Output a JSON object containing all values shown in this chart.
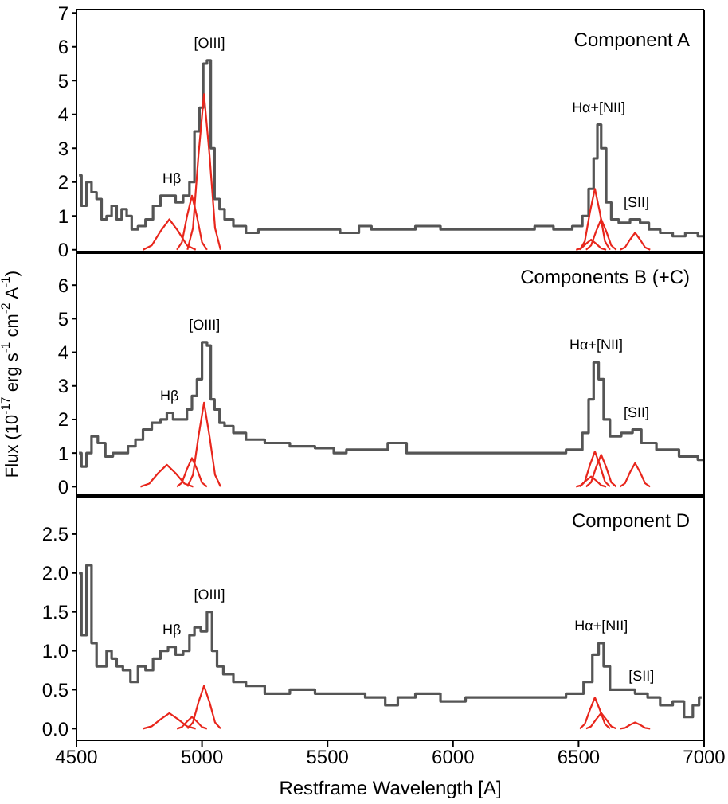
{
  "chart_data": [
    {
      "type": "line",
      "title": "Component A",
      "xlim": [
        4500,
        7000
      ],
      "xticks": [
        4500,
        5000,
        5500,
        6000,
        6500,
        7000
      ],
      "ylim": [
        -0.1,
        7.1
      ],
      "yticks": [
        0,
        1,
        2,
        3,
        4,
        5,
        6,
        7
      ],
      "tick_labels": "y",
      "marker": "none",
      "line_style": "solid",
      "annotations": [
        {
          "text": "Hβ",
          "x": 4880,
          "y": 1.6
        },
        {
          "text": "[OIII]",
          "x": 5030,
          "y": 5.6
        },
        {
          "text": "Hα+[NII]",
          "x": 6580,
          "y": 3.7
        },
        {
          "text": "[SII]",
          "x": 6730,
          "y": 0.9
        }
      ],
      "series": [
        {
          "type": "step",
          "color": "#555555",
          "x": [
            4510,
            4530,
            4550,
            4570,
            4590,
            4610,
            4630,
            4650,
            4670,
            4690,
            4710,
            4730,
            4760,
            4790,
            4820,
            4850,
            4880,
            4910,
            4940,
            4960,
            4980,
            5000,
            5010,
            5030,
            5040,
            5060,
            5080,
            5100,
            5150,
            5200,
            5250,
            5300,
            5400,
            5500,
            5600,
            5650,
            5700,
            5800,
            5900,
            6000,
            6100,
            6200,
            6300,
            6350,
            6450,
            6500,
            6530,
            6550,
            6570,
            6580,
            6600,
            6620,
            6640,
            6680,
            6730,
            6760,
            6800,
            6850,
            6900,
            6950,
            7000
          ],
          "values": [
            2.2,
            1.3,
            2.0,
            1.7,
            1.5,
            0.9,
            1.0,
            1.3,
            0.9,
            1.2,
            1.0,
            0.6,
            0.7,
            0.9,
            1.3,
            1.6,
            1.6,
            1.4,
            1.6,
            2.0,
            3.5,
            4.2,
            5.5,
            5.6,
            3.0,
            1.5,
            1.2,
            0.9,
            0.7,
            0.5,
            0.6,
            0.6,
            0.6,
            0.6,
            0.5,
            0.7,
            0.6,
            0.6,
            0.7,
            0.6,
            0.6,
            0.6,
            0.6,
            0.7,
            0.6,
            0.7,
            1.0,
            1.8,
            2.7,
            3.7,
            3.0,
            1.4,
            0.9,
            0.8,
            0.9,
            0.8,
            0.6,
            0.5,
            0.4,
            0.5,
            0.4
          ]
        },
        {
          "type": "line",
          "color": "#e8261c",
          "x": [
            4765,
            4800,
            4835,
            4870,
            4905,
            4940,
            4975
          ],
          "values": [
            0,
            0.13,
            0.55,
            0.9,
            0.55,
            0.13,
            0
          ]
        },
        {
          "type": "line",
          "color": "#e8261c",
          "x": [
            4900,
            4920,
            4940,
            4960,
            4980,
            5000,
            5020
          ],
          "values": [
            0,
            0.22,
            0.98,
            1.6,
            0.98,
            0.22,
            0
          ]
        },
        {
          "type": "line",
          "color": "#e8261c",
          "x": [
            4942,
            4964,
            4986,
            5008,
            5030,
            5052,
            5074
          ],
          "values": [
            0,
            0.64,
            2.8,
            4.6,
            2.8,
            0.64,
            0
          ]
        },
        {
          "type": "line",
          "color": "#e8261c",
          "x": [
            6505,
            6525,
            6545,
            6565,
            6585,
            6605,
            6625
          ],
          "values": [
            0,
            0.25,
            1.1,
            1.8,
            1.1,
            0.25,
            0
          ]
        },
        {
          "type": "line",
          "color": "#e8261c",
          "x": [
            6530,
            6550,
            6570,
            6590,
            6610,
            6630,
            6650
          ],
          "values": [
            0,
            0.13,
            0.55,
            0.9,
            0.55,
            0.13,
            0
          ]
        },
        {
          "type": "line",
          "color": "#e8261c",
          "x": [
            6490,
            6510,
            6530,
            6550,
            6570,
            6590,
            6610
          ],
          "values": [
            0,
            0.04,
            0.18,
            0.3,
            0.18,
            0.04,
            0
          ]
        },
        {
          "type": "line",
          "color": "#e8261c",
          "x": [
            6665,
            6685,
            6705,
            6725,
            6745,
            6765,
            6785
          ],
          "values": [
            0,
            0.07,
            0.3,
            0.5,
            0.3,
            0.07,
            0
          ]
        }
      ]
    },
    {
      "type": "line",
      "title": "Components B (+C)",
      "ylabel": "Flux (10$^{-17}$ erg s$^{-1}$ cm$^{-2}$ A$^{-1}$)",
      "xlim": [
        4500,
        7000
      ],
      "xticks": [
        4500,
        5000,
        5500,
        6000,
        6500,
        7000
      ],
      "ylim": [
        -0.3,
        7.0
      ],
      "yticks": [
        0,
        1,
        2,
        3,
        4,
        5,
        6
      ],
      "tick_labels": "y",
      "marker": "none",
      "line_style": "solid",
      "annotations": [
        {
          "text": "Hβ",
          "x": 4870,
          "y": 2.2
        },
        {
          "text": "[OIII]",
          "x": 5010,
          "y": 4.3
        },
        {
          "text": "Hα+[NII]",
          "x": 6570,
          "y": 3.7
        },
        {
          "text": "[SII]",
          "x": 6730,
          "y": 1.7
        }
      ],
      "series": [
        {
          "type": "step",
          "color": "#555555",
          "x": [
            4510,
            4530,
            4550,
            4570,
            4600,
            4630,
            4660,
            4690,
            4720,
            4750,
            4780,
            4820,
            4850,
            4870,
            4900,
            4930,
            4950,
            4970,
            4990,
            5010,
            5030,
            5040,
            5060,
            5080,
            5100,
            5150,
            5200,
            5300,
            5400,
            5500,
            5550,
            5600,
            5700,
            5780,
            5850,
            6000,
            6200,
            6400,
            6500,
            6530,
            6550,
            6570,
            6590,
            6610,
            6640,
            6700,
            6730,
            6770,
            6850,
            6950,
            7000
          ],
          "values": [
            1.0,
            0.6,
            1.0,
            1.5,
            1.3,
            0.9,
            1.0,
            1.0,
            1.2,
            1.4,
            1.7,
            1.9,
            2.0,
            2.2,
            2.0,
            2.0,
            2.3,
            2.7,
            3.2,
            4.3,
            4.2,
            2.6,
            2.3,
            1.9,
            1.8,
            1.6,
            1.4,
            1.3,
            1.2,
            1.15,
            1.0,
            1.1,
            1.1,
            1.3,
            1.0,
            1.0,
            1.0,
            1.0,
            1.1,
            1.6,
            2.6,
            3.7,
            3.2,
            2.0,
            1.5,
            1.6,
            1.7,
            1.3,
            1.1,
            0.9,
            0.8
          ]
        },
        {
          "type": "line",
          "color": "#e8261c",
          "x": [
            4755,
            4790,
            4825,
            4860,
            4895,
            4930,
            4965
          ],
          "values": [
            0,
            0.09,
            0.4,
            0.65,
            0.4,
            0.09,
            0
          ]
        },
        {
          "type": "line",
          "color": "#e8261c",
          "x": [
            4900,
            4920,
            4940,
            4960,
            4980,
            5000,
            5020
          ],
          "values": [
            0,
            0.12,
            0.52,
            0.85,
            0.52,
            0.12,
            0
          ]
        },
        {
          "type": "line",
          "color": "#e8261c",
          "x": [
            4942,
            4964,
            4986,
            5008,
            5030,
            5052,
            5074
          ],
          "values": [
            0,
            0.35,
            1.5,
            2.5,
            1.5,
            0.35,
            0
          ]
        },
        {
          "type": "line",
          "color": "#e8261c",
          "x": [
            6505,
            6525,
            6545,
            6565,
            6585,
            6605,
            6625
          ],
          "values": [
            0,
            0.15,
            0.64,
            1.05,
            0.64,
            0.15,
            0
          ]
        },
        {
          "type": "line",
          "color": "#e8261c",
          "x": [
            6530,
            6550,
            6570,
            6590,
            6610,
            6630,
            6650
          ],
          "values": [
            0,
            0.13,
            0.58,
            0.95,
            0.58,
            0.13,
            0
          ]
        },
        {
          "type": "line",
          "color": "#e8261c",
          "x": [
            6490,
            6510,
            6530,
            6550,
            6570,
            6590,
            6610
          ],
          "values": [
            0,
            0.04,
            0.18,
            0.3,
            0.18,
            0.04,
            0
          ]
        },
        {
          "type": "line",
          "color": "#e8261c",
          "x": [
            6665,
            6685,
            6705,
            6725,
            6745,
            6765,
            6785
          ],
          "values": [
            0,
            0.1,
            0.43,
            0.7,
            0.43,
            0.1,
            0
          ]
        }
      ]
    },
    {
      "type": "line",
      "title": "Component D",
      "xlabel": "Restframe Wavelength [A]",
      "xlim": [
        4500,
        7000
      ],
      "xticks": [
        4500,
        5000,
        5500,
        6000,
        6500,
        7000
      ],
      "ylim": [
        -0.15,
        3.0
      ],
      "yticks": [
        {
          "value": 0,
          "label": "0.0"
        },
        {
          "value": 0.5,
          "label": "0.5"
        },
        {
          "value": 1,
          "label": "1.0"
        },
        {
          "value": 1.5,
          "label": "1.5"
        },
        {
          "value": 2,
          "label": "2.0"
        },
        {
          "value": 2.5,
          "label": "2.5"
        }
      ],
      "marker": "none",
      "line_style": "solid",
      "annotations": [
        {
          "text": "Hβ",
          "x": 4880,
          "y": 1.05
        },
        {
          "text": "[OIII]",
          "x": 5030,
          "y": 1.5
        },
        {
          "text": "Hα+[NII]",
          "x": 6590,
          "y": 1.1
        },
        {
          "text": "[SII]",
          "x": 6750,
          "y": 0.45
        }
      ],
      "series": [
        {
          "type": "step",
          "color": "#555555",
          "x": [
            4510,
            4530,
            4550,
            4570,
            4590,
            4610,
            4630,
            4650,
            4670,
            4700,
            4730,
            4760,
            4790,
            4820,
            4850,
            4880,
            4910,
            4940,
            4960,
            4980,
            5010,
            5030,
            5050,
            5070,
            5100,
            5150,
            5200,
            5300,
            5400,
            5500,
            5600,
            5700,
            5760,
            5800,
            5900,
            6000,
            6100,
            6200,
            6300,
            6400,
            6500,
            6540,
            6570,
            6590,
            6610,
            6640,
            6700,
            6750,
            6800,
            6850,
            6900,
            6940,
            6970,
            6990
          ],
          "values": [
            2.0,
            1.2,
            2.1,
            1.1,
            0.8,
            0.8,
            1.0,
            0.9,
            0.8,
            0.75,
            0.6,
            0.8,
            0.75,
            0.9,
            1.0,
            1.05,
            0.95,
            1.0,
            1.2,
            1.3,
            1.25,
            1.5,
            1.0,
            0.8,
            0.7,
            0.6,
            0.55,
            0.45,
            0.5,
            0.45,
            0.45,
            0.4,
            0.3,
            0.4,
            0.45,
            0.35,
            0.4,
            0.4,
            0.4,
            0.4,
            0.45,
            0.6,
            0.95,
            1.1,
            0.8,
            0.5,
            0.5,
            0.45,
            0.4,
            0.3,
            0.35,
            0.15,
            0.3,
            0.4
          ]
        },
        {
          "type": "line",
          "color": "#e8261c",
          "x": [
            4765,
            4800,
            4835,
            4870,
            4905,
            4940,
            4975
          ],
          "values": [
            0,
            0.03,
            0.12,
            0.2,
            0.12,
            0.03,
            0
          ]
        },
        {
          "type": "line",
          "color": "#e8261c",
          "x": [
            4900,
            4920,
            4940,
            4960,
            4980,
            5000,
            5020
          ],
          "values": [
            0,
            0.02,
            0.09,
            0.15,
            0.09,
            0.02,
            0
          ]
        },
        {
          "type": "line",
          "color": "#e8261c",
          "x": [
            4942,
            4964,
            4986,
            5008,
            5030,
            5052,
            5074
          ],
          "values": [
            0,
            0.08,
            0.34,
            0.55,
            0.34,
            0.08,
            0
          ]
        },
        {
          "type": "line",
          "color": "#e8261c",
          "x": [
            6505,
            6525,
            6545,
            6565,
            6585,
            6605,
            6625
          ],
          "values": [
            0,
            0.06,
            0.24,
            0.4,
            0.24,
            0.06,
            0
          ]
        },
        {
          "type": "line",
          "color": "#e8261c",
          "x": [
            6530,
            6550,
            6570,
            6590,
            6610,
            6630,
            6650
          ],
          "values": [
            0,
            0.03,
            0.12,
            0.2,
            0.12,
            0.03,
            0
          ]
        },
        {
          "type": "line",
          "color": "#e8261c",
          "x": [
            6665,
            6685,
            6705,
            6725,
            6745,
            6765,
            6785
          ],
          "values": [
            0,
            0.01,
            0.05,
            0.08,
            0.05,
            0.01,
            0
          ]
        }
      ]
    }
  ]
}
